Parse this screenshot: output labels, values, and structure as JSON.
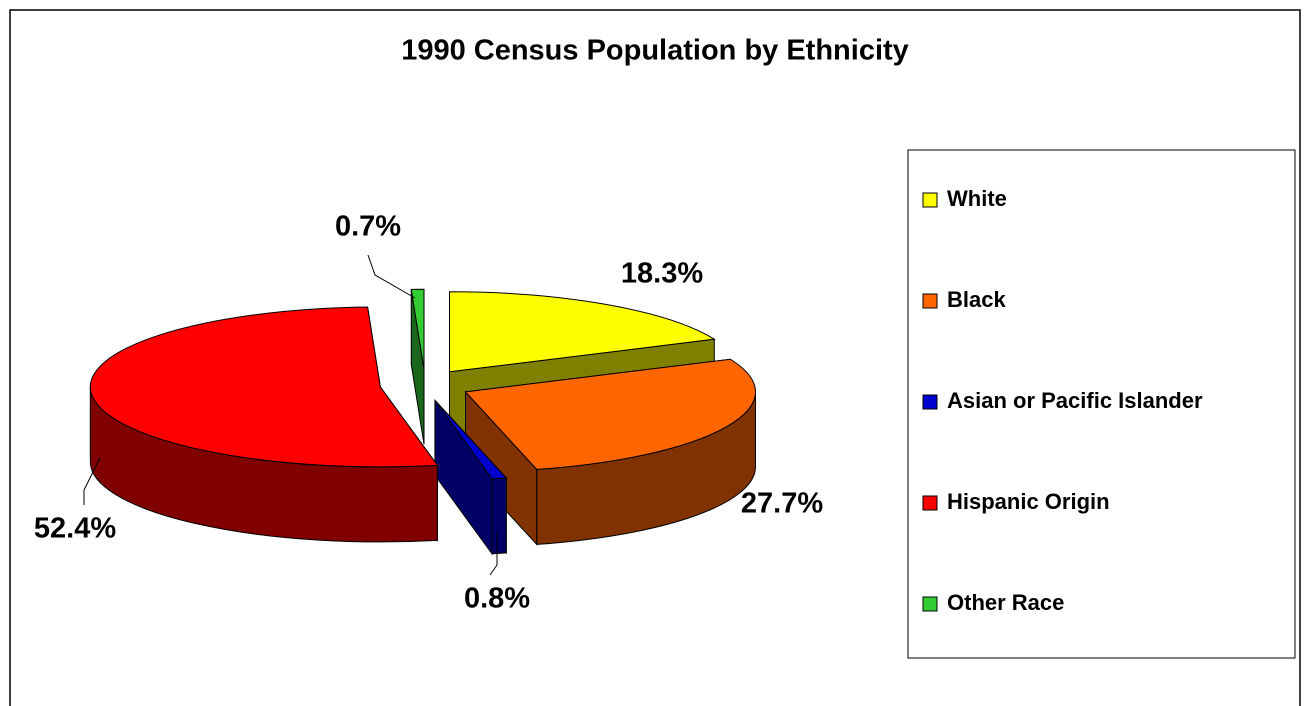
{
  "chart_data": {
    "type": "pie",
    "title": "1990 Census Population by Ethnicity",
    "categories": [
      "White",
      "Black",
      "Asian or Pacific Islander",
      "Hispanic Origin",
      "Other Race"
    ],
    "values": [
      18.3,
      27.7,
      0.8,
      52.4,
      0.7
    ],
    "value_labels": [
      "18.3%",
      "27.7%",
      "0.8%",
      "52.4%",
      "0.7%"
    ],
    "colors": [
      "#ffff00",
      "#ff6600",
      "#0000cc",
      "#ff0000",
      "#33cc33"
    ],
    "legend": "right"
  }
}
